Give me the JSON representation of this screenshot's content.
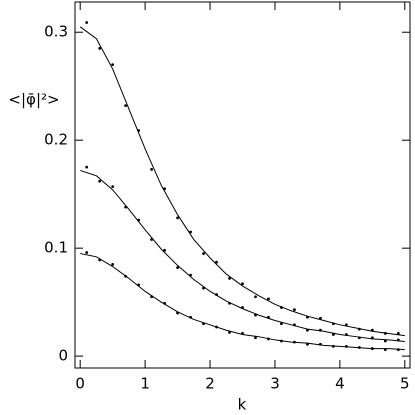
{
  "chart_data": {
    "type": "line",
    "xlabel": "k",
    "ylabel": "<|φ̄|²>",
    "xlim": [
      -0.08,
      5.08
    ],
    "ylim": [
      -0.011,
      0.328
    ],
    "xticks": [
      0,
      1,
      2,
      3,
      4,
      5
    ],
    "yticks": [
      0,
      0.1,
      0.2,
      0.3
    ],
    "series": [
      {
        "color": "#000000",
        "mode": "line",
        "x": [
          0,
          0.25,
          0.5,
          0.75,
          1,
          1.25,
          1.5,
          1.75,
          2,
          2.25,
          2.5,
          2.75,
          3,
          3.25,
          3.5,
          3.75,
          4,
          4.25,
          4.5,
          4.75,
          5
        ],
        "values": [
          0.305,
          0.294,
          0.266,
          0.229,
          0.192,
          0.158,
          0.131,
          0.108,
          0.091,
          0.076,
          0.065,
          0.056,
          0.048,
          0.042,
          0.037,
          0.033,
          0.029,
          0.026,
          0.023,
          0.021,
          0.019
        ]
      },
      {
        "color": "#000000",
        "mode": "line",
        "x": [
          0,
          0.25,
          0.5,
          0.75,
          1,
          1.25,
          1.5,
          1.75,
          2,
          2.25,
          2.5,
          2.75,
          3,
          3.25,
          3.5,
          3.75,
          4,
          4.25,
          4.5,
          4.75,
          5
        ],
        "values": [
          0.172,
          0.167,
          0.154,
          0.136,
          0.117,
          0.099,
          0.084,
          0.071,
          0.06,
          0.051,
          0.044,
          0.038,
          0.033,
          0.029,
          0.025,
          0.023,
          0.02,
          0.018,
          0.016,
          0.015,
          0.0135
        ]
      },
      {
        "color": "#000000",
        "mode": "line",
        "x": [
          0,
          0.25,
          0.5,
          0.75,
          1,
          1.25,
          1.5,
          1.75,
          2,
          2.25,
          2.5,
          2.75,
          3,
          3.25,
          3.5,
          3.75,
          4,
          4.25,
          4.5,
          4.75,
          5
        ],
        "values": [
          0.095,
          0.092,
          0.083,
          0.072,
          0.06,
          0.05,
          0.041,
          0.034,
          0.029,
          0.024,
          0.02,
          0.018,
          0.015,
          0.013,
          0.012,
          0.01,
          0.009,
          0.008,
          0.007,
          0.007,
          0.006
        ]
      },
      {
        "color": "#000000",
        "mode": "markers",
        "x": [
          0.1,
          0.3,
          0.5,
          0.7,
          0.9,
          1.1,
          1.3,
          1.5,
          1.7,
          1.9,
          2.1,
          2.3,
          2.5,
          2.7,
          2.9,
          3.1,
          3.3,
          3.5,
          3.7,
          3.9,
          4.1,
          4.3,
          4.5,
          4.7,
          4.9
        ],
        "values": [
          0.309,
          0.285,
          0.27,
          0.232,
          0.209,
          0.173,
          0.155,
          0.128,
          0.115,
          0.095,
          0.087,
          0.072,
          0.067,
          0.055,
          0.053,
          0.045,
          0.043,
          0.036,
          0.035,
          0.03,
          0.029,
          0.025,
          0.024,
          0.021,
          0.021
        ]
      },
      {
        "color": "#000000",
        "mode": "markers",
        "x": [
          0.1,
          0.3,
          0.5,
          0.7,
          0.9,
          1.1,
          1.3,
          1.5,
          1.7,
          1.9,
          2.1,
          2.3,
          2.5,
          2.7,
          2.9,
          3.1,
          3.3,
          3.5,
          3.7,
          3.9,
          4.1,
          4.3,
          4.5,
          4.7,
          4.9
        ],
        "values": [
          0.175,
          0.162,
          0.157,
          0.138,
          0.126,
          0.108,
          0.098,
          0.082,
          0.075,
          0.063,
          0.057,
          0.049,
          0.045,
          0.038,
          0.036,
          0.03,
          0.029,
          0.024,
          0.024,
          0.02,
          0.02,
          0.017,
          0.017,
          0.014,
          0.015
        ]
      },
      {
        "color": "#000000",
        "mode": "markers",
        "x": [
          0.1,
          0.3,
          0.5,
          0.7,
          0.9,
          1.1,
          1.3,
          1.5,
          1.7,
          1.9,
          2.1,
          2.3,
          2.5,
          2.7,
          2.9,
          3.1,
          3.3,
          3.5,
          3.7,
          3.9,
          4.1,
          4.3,
          4.5,
          4.7,
          4.9
        ],
        "values": [
          0.096,
          0.089,
          0.085,
          0.074,
          0.066,
          0.055,
          0.049,
          0.04,
          0.036,
          0.03,
          0.027,
          0.022,
          0.021,
          0.017,
          0.016,
          0.014,
          0.013,
          0.011,
          0.011,
          0.009,
          0.009,
          0.008,
          0.007,
          0.006,
          0.006
        ]
      }
    ]
  }
}
